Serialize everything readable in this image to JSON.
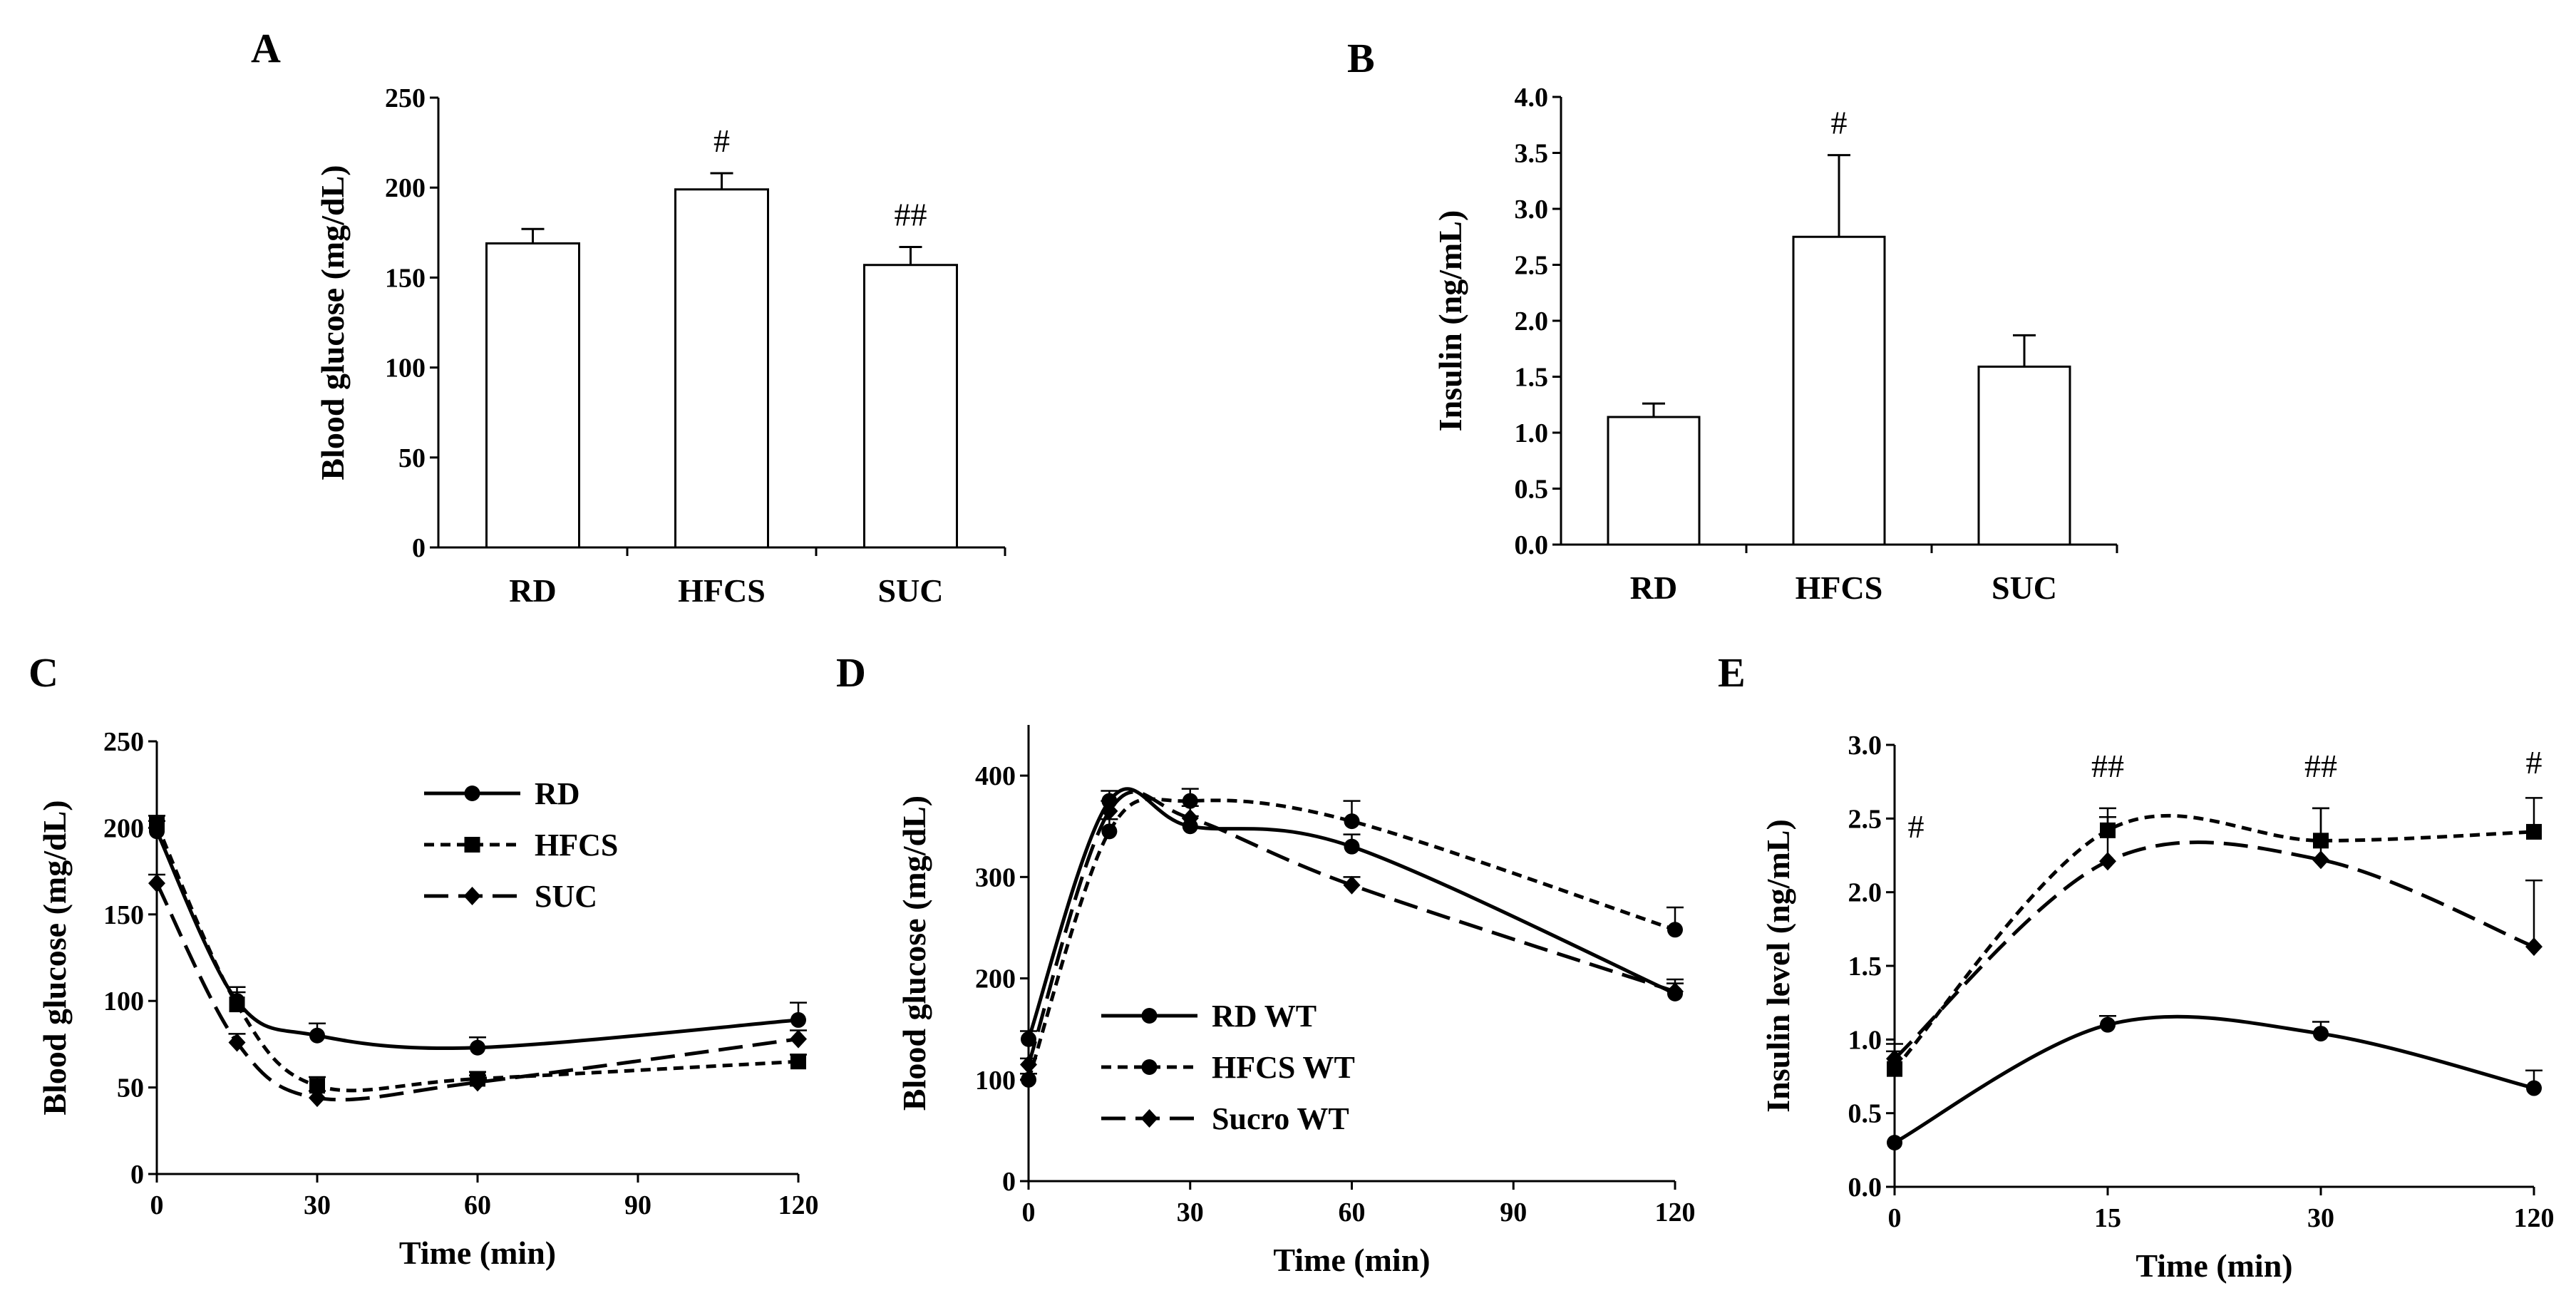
{
  "panels": {
    "A": {
      "label": "A"
    },
    "B": {
      "label": "B"
    },
    "C": {
      "label": "C"
    },
    "D": {
      "label": "D"
    },
    "E": {
      "label": "E"
    }
  },
  "chart_data": [
    {
      "id": "A",
      "type": "bar",
      "categories": [
        "RD",
        "HFCS",
        "SUC"
      ],
      "values": [
        169,
        199,
        157
      ],
      "errors": [
        8,
        9,
        10
      ],
      "annotations": [
        "",
        "#",
        "##"
      ],
      "ylabel": "Blood glucose (mg/dL)",
      "ylim": [
        0,
        250
      ],
      "yticks": [
        "0",
        "50",
        "100",
        "150",
        "200",
        "250"
      ],
      "ytick_values": [
        0,
        50,
        100,
        150,
        200,
        250
      ]
    },
    {
      "id": "B",
      "type": "bar",
      "categories": [
        "RD",
        "HFCS",
        "SUC"
      ],
      "values": [
        1.14,
        2.75,
        1.59
      ],
      "errors": [
        0.12,
        0.73,
        0.28
      ],
      "annotations": [
        "",
        "#",
        ""
      ],
      "ylabel": "Insulin (ng/mL)",
      "ylim": [
        0,
        4
      ],
      "yticks": [
        "0.0",
        "0.5",
        "1.0",
        "1.5",
        "2.0",
        "2.5",
        "3.0",
        "3.5",
        "4.0"
      ],
      "ytick_values": [
        0,
        0.5,
        1,
        1.5,
        2,
        2.5,
        3,
        3.5,
        4
      ]
    },
    {
      "id": "C",
      "type": "line",
      "xlabel": "Time (min)",
      "ylabel": "Blood glucose (mg/dL)",
      "xlim": [
        0,
        120
      ],
      "ylim": [
        0,
        250
      ],
      "xticks": [
        "0",
        "30",
        "60",
        "90",
        "120"
      ],
      "xtick_values": [
        0,
        30,
        60,
        90,
        120
      ],
      "yticks": [
        "0",
        "50",
        "100",
        "150",
        "200",
        "250"
      ],
      "ytick_values": [
        0,
        50,
        100,
        150,
        200,
        250
      ],
      "legend_position": "top-right",
      "series": [
        {
          "name": "RD",
          "marker": "circle",
          "dash": "solid",
          "x": [
            0,
            15,
            30,
            60,
            120
          ],
          "y": [
            198,
            100,
            80,
            73,
            89
          ],
          "err": [
            6,
            8,
            7,
            6,
            10
          ]
        },
        {
          "name": "HFCS",
          "marker": "square",
          "dash": "short",
          "x": [
            0,
            15,
            30,
            60,
            120
          ],
          "y": [
            202,
            98,
            51,
            55,
            65
          ],
          "err": [
            5,
            7,
            5,
            4,
            4
          ]
        },
        {
          "name": "SUC",
          "marker": "diamond",
          "dash": "long",
          "x": [
            0,
            15,
            30,
            60,
            120
          ],
          "y": [
            168,
            76,
            44,
            53,
            78
          ],
          "err": [
            5,
            5,
            4,
            4,
            5
          ]
        }
      ]
    },
    {
      "id": "D",
      "type": "line",
      "xlabel": "Time (min)",
      "ylabel": "Blood glucose (mg/dL)",
      "xlim": [
        0,
        120
      ],
      "ylim": [
        0,
        450
      ],
      "xticks": [
        "0",
        "30",
        "60",
        "90",
        "120"
      ],
      "xtick_values": [
        0,
        30,
        60,
        90,
        120
      ],
      "yticks": [
        "0",
        "100",
        "200",
        "300",
        "400"
      ],
      "ytick_values": [
        0,
        100,
        200,
        300,
        400
      ],
      "legend_position": "bottom-left",
      "series": [
        {
          "name": "RD WT",
          "marker": "circle",
          "dash": "solid",
          "x": [
            0,
            15,
            30,
            60,
            120
          ],
          "y": [
            140,
            375,
            350,
            330,
            185
          ],
          "err": [
            8,
            10,
            10,
            12,
            10
          ]
        },
        {
          "name": "HFCS WT",
          "marker": "circle",
          "dash": "short",
          "x": [
            0,
            15,
            30,
            60,
            120
          ],
          "y": [
            100,
            345,
            375,
            355,
            248
          ],
          "err": [
            6,
            12,
            12,
            20,
            22
          ]
        },
        {
          "name": "Sucro WT",
          "marker": "diamond",
          "dash": "long",
          "x": [
            0,
            15,
            30,
            60,
            120
          ],
          "y": [
            115,
            365,
            358,
            292,
            187
          ],
          "err": [
            6,
            10,
            12,
            8,
            12
          ]
        }
      ]
    },
    {
      "id": "E",
      "type": "line",
      "xlabel": "Time (min)",
      "ylabel": "Insulin level (ng/mL)",
      "xcategories": [
        "0",
        "15",
        "30",
        "120"
      ],
      "ylim": [
        0,
        3
      ],
      "yticks": [
        "0.0",
        "0.5",
        "1.0",
        "1.5",
        "2.0",
        "2.5",
        "3.0"
      ],
      "ytick_values": [
        0,
        0.5,
        1,
        1.5,
        2,
        2.5,
        3
      ],
      "annotations": [
        "#",
        "##",
        "##",
        "#"
      ],
      "series": [
        {
          "name": "",
          "marker": "circle",
          "dash": "solid",
          "y": [
            0.3,
            1.1,
            1.04,
            0.67
          ],
          "err": [
            0,
            0.06,
            0.08,
            0.12
          ]
        },
        {
          "name": "",
          "marker": "square",
          "dash": "short",
          "y": [
            0.8,
            2.42,
            2.35,
            2.41
          ],
          "err": [
            0.12,
            0.15,
            0.22,
            0.23
          ]
        },
        {
          "name": "",
          "marker": "diamond",
          "dash": "long",
          "y": [
            0.87,
            2.21,
            2.22,
            1.63
          ],
          "err": [
            0.1,
            0.3,
            0.35,
            0.45
          ]
        }
      ]
    }
  ]
}
